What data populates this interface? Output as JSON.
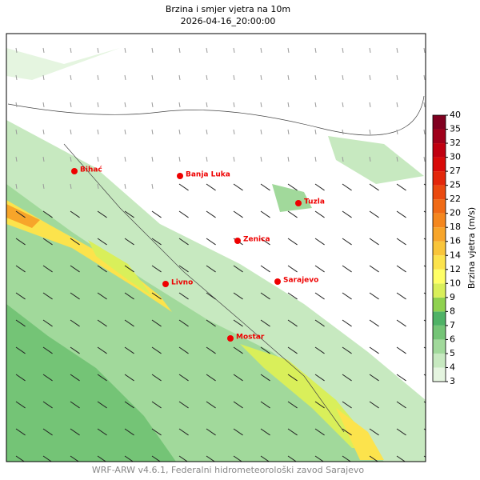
{
  "header": {
    "title": "Brzina i smjer vjetra na 10m",
    "subtitle": "2026-04-16_20:00:00"
  },
  "cities": [
    {
      "label": "Bihać"
    },
    {
      "label": "Banja Luka"
    },
    {
      "label": "Tuzla"
    },
    {
      "label": "Zenica"
    },
    {
      "label": "Sarajevo"
    },
    {
      "label": "Livno"
    },
    {
      "label": "Mostar"
    }
  ],
  "colorbar": {
    "label": "Brzina vjetra (m/s)",
    "levels": [
      3,
      4,
      5,
      6,
      7,
      8,
      9,
      10,
      12,
      14,
      16,
      18,
      20,
      22,
      25,
      27,
      30,
      32,
      35,
      40
    ],
    "colors": [
      "#e5f5e0",
      "#c7e9c0",
      "#a1d99b",
      "#74c476",
      "#4fb266",
      "#8fd14f",
      "#d9ef5a",
      "#ffff66",
      "#fce34c",
      "#f9c53a",
      "#f7a52a",
      "#f4871e",
      "#f06a15",
      "#ea4a10",
      "#e3270b",
      "#d80a08",
      "#c00010",
      "#a0001a",
      "#800020"
    ]
  },
  "footer": "WRF-ARW v4.6.1, Federalni hidrometeorološki zavod Sarajevo"
}
